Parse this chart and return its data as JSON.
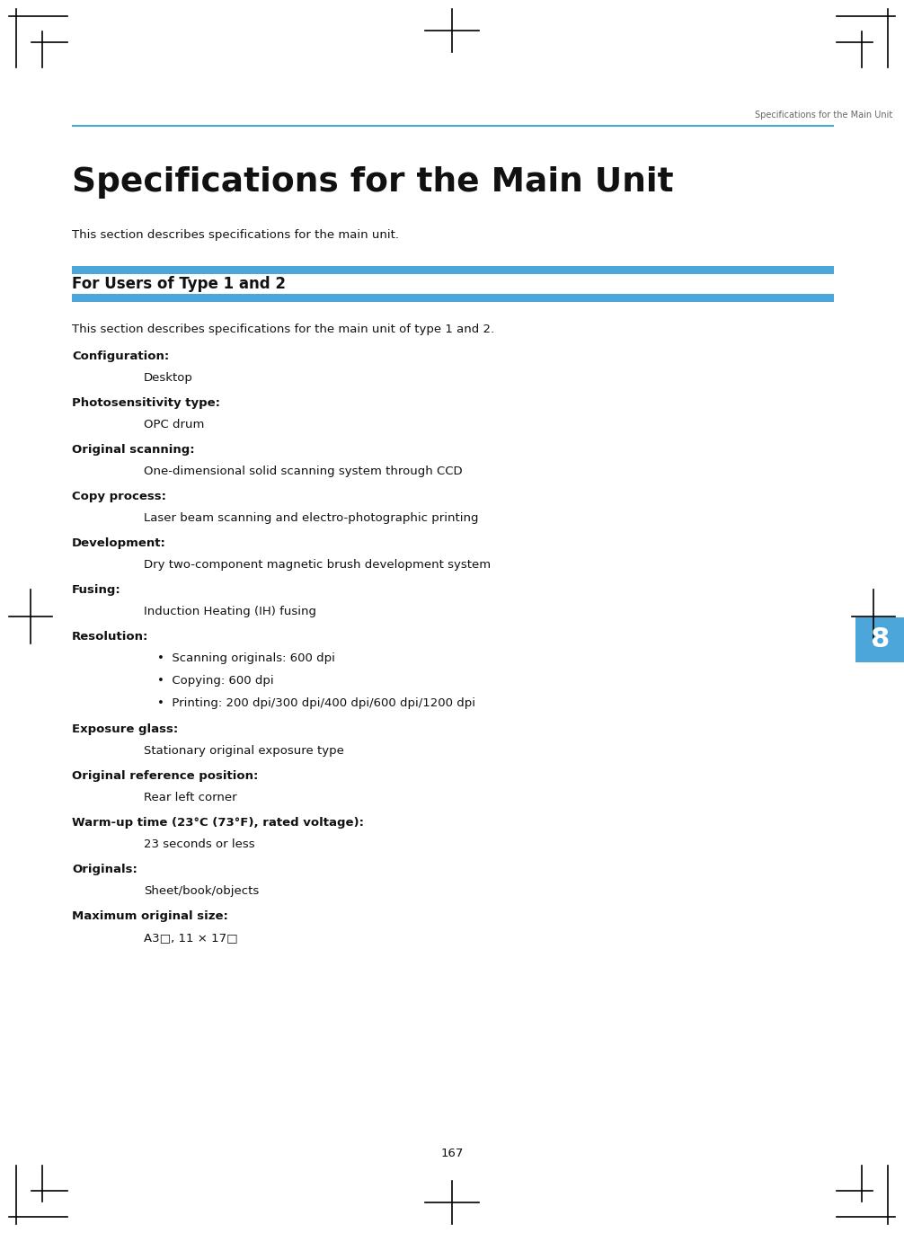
{
  "bg_color": "#ffffff",
  "header_line_color": "#4da6d9",
  "page_title": "Specifications for the Main Unit",
  "page_header_label": "Specifications for the Main Unit",
  "section_header": "For Users of Type 1 and 2",
  "intro_text": "This section describes specifications for the main unit.",
  "section_intro": "This section describes specifications for the main unit of type 1 and 2.",
  "tab_number": "8",
  "tab_color": "#4da6d9",
  "page_number": "167",
  "specs": [
    {
      "label": "Configuration:",
      "value": "Desktop",
      "bullets": null
    },
    {
      "label": "Photosensitivity type:",
      "value": "OPC drum",
      "bullets": null
    },
    {
      "label": "Original scanning:",
      "value": "One-dimensional solid scanning system through CCD",
      "bullets": null
    },
    {
      "label": "Copy process:",
      "value": "Laser beam scanning and electro-photographic printing",
      "bullets": null
    },
    {
      "label": "Development:",
      "value": "Dry two-component magnetic brush development system",
      "bullets": null
    },
    {
      "label": "Fusing:",
      "value": "Induction Heating (IH) fusing",
      "bullets": null
    },
    {
      "label": "Resolution:",
      "value": null,
      "bullets": [
        "Scanning originals: 600 dpi",
        "Copying: 600 dpi",
        "Printing: 200 dpi/300 dpi/400 dpi/600 dpi/1200 dpi"
      ]
    },
    {
      "label": "Exposure glass:",
      "value": "Stationary original exposure type",
      "bullets": null
    },
    {
      "label": "Original reference position:",
      "value": "Rear left corner",
      "bullets": null
    },
    {
      "label": "Warm-up time (23°C (73°F), rated voltage):",
      "value": "23 seconds or less",
      "bullets": null
    },
    {
      "label": "Originals:",
      "value": "Sheet/book/objects",
      "bullets": null
    },
    {
      "label": "Maximum original size:",
      "value": "A3□, 11 × 17□",
      "bullets": null
    }
  ]
}
